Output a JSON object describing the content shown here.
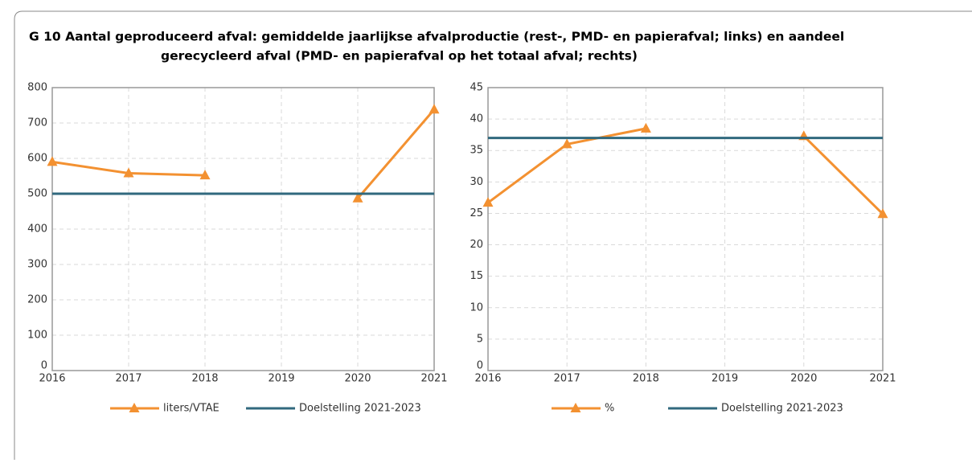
{
  "title": [
    "G 10 Aantal geproduceerd afval: gemiddelde jaarlijkse afvalproductie (rest-, PMD- en papierafval; links) en aandeel",
    "gerecycleerd afval (PMD- en papierafval op het totaal afval; rechts)"
  ],
  "chart_data": [
    {
      "type": "line",
      "x": [
        2016,
        2017,
        2018,
        2019,
        2020,
        2021
      ],
      "xlim": [
        2016,
        2021
      ],
      "ylim": [
        0,
        800
      ],
      "yticks": [
        0,
        100,
        200,
        300,
        400,
        500,
        600,
        700,
        800
      ],
      "grid": true,
      "series": [
        {
          "name": "liters/VTAE",
          "color": "#f39131",
          "marker": "triangle",
          "values": [
            590,
            558,
            552,
            null,
            487,
            738
          ]
        },
        {
          "name": "Doelstelling 2021-2023",
          "color": "#31697e",
          "values": [
            500,
            500,
            500,
            500,
            500,
            500
          ]
        }
      ]
    },
    {
      "type": "line",
      "x": [
        2016,
        2017,
        2018,
        2019,
        2020,
        2021
      ],
      "xlim": [
        2016,
        2021
      ],
      "ylim": [
        0,
        45
      ],
      "yticks": [
        0,
        5,
        10,
        15,
        20,
        25,
        30,
        35,
        40,
        45
      ],
      "grid": true,
      "series": [
        {
          "name": "%",
          "color": "#f39131",
          "marker": "triangle",
          "values": [
            26.7,
            36,
            38.5,
            null,
            37.3,
            24.9
          ]
        },
        {
          "name": "Doelstelling 2021-2023",
          "color": "#31697e",
          "values": [
            37,
            37,
            37,
            37,
            37,
            37
          ]
        }
      ]
    }
  ]
}
